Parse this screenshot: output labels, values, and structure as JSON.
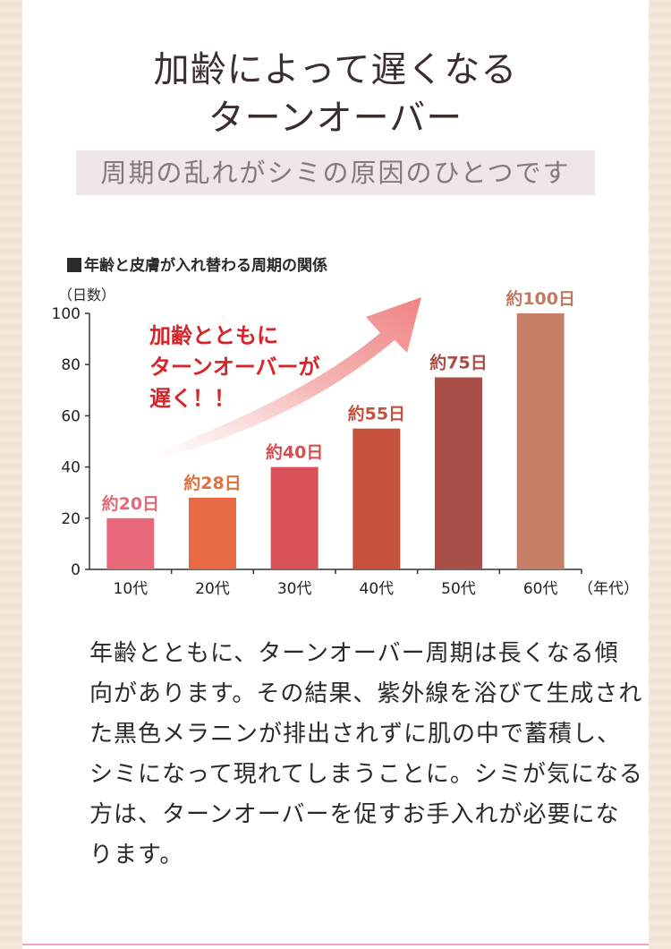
{
  "heading": {
    "line1": "加齢によって遅くなる",
    "line2": "ターンオーバー"
  },
  "subtitle": "周期の乱れがシミの原因のひとつです",
  "callout": {
    "line1": "加齢とともに",
    "line2": "ターンオーバーが",
    "line3": "遅く！！"
  },
  "body_lines": [
    "年齢とともに、ターンオーバー周期は長くなる傾",
    "向があります。その結果、紫外線を浴びて生成され",
    "た黒色メラニンが排出されずに肌の中で蓄積し、",
    "シミになって現れてしまうことに。シミが気になる",
    "方は、ターンオーバーを促すお手入れが必要にな",
    "ります。"
  ],
  "chart_data": {
    "type": "bar",
    "title": "年齢と皮膚が入れ替わる周期の関係",
    "ylabel": "（日数）",
    "xlabel": "（年代）",
    "categories": [
      "10代",
      "20代",
      "30代",
      "40代",
      "50代",
      "60代"
    ],
    "values": [
      20,
      28,
      40,
      55,
      75,
      100
    ],
    "data_labels": [
      "約20日",
      "約28日",
      "約40日",
      "約55日",
      "約75日",
      "約100日"
    ],
    "ylim": [
      0,
      100
    ],
    "yticks": [
      0,
      20,
      40,
      60,
      80,
      100
    ],
    "bar_colors": [
      "#e8687a",
      "#e86a45",
      "#d9525a",
      "#c6523e",
      "#a84f4a",
      "#c47f66"
    ],
    "label_colors": [
      "#e26a7a",
      "#e0703f",
      "#d44f4e",
      "#c4513b",
      "#a84d46",
      "#c07a61"
    ],
    "grid": false
  }
}
